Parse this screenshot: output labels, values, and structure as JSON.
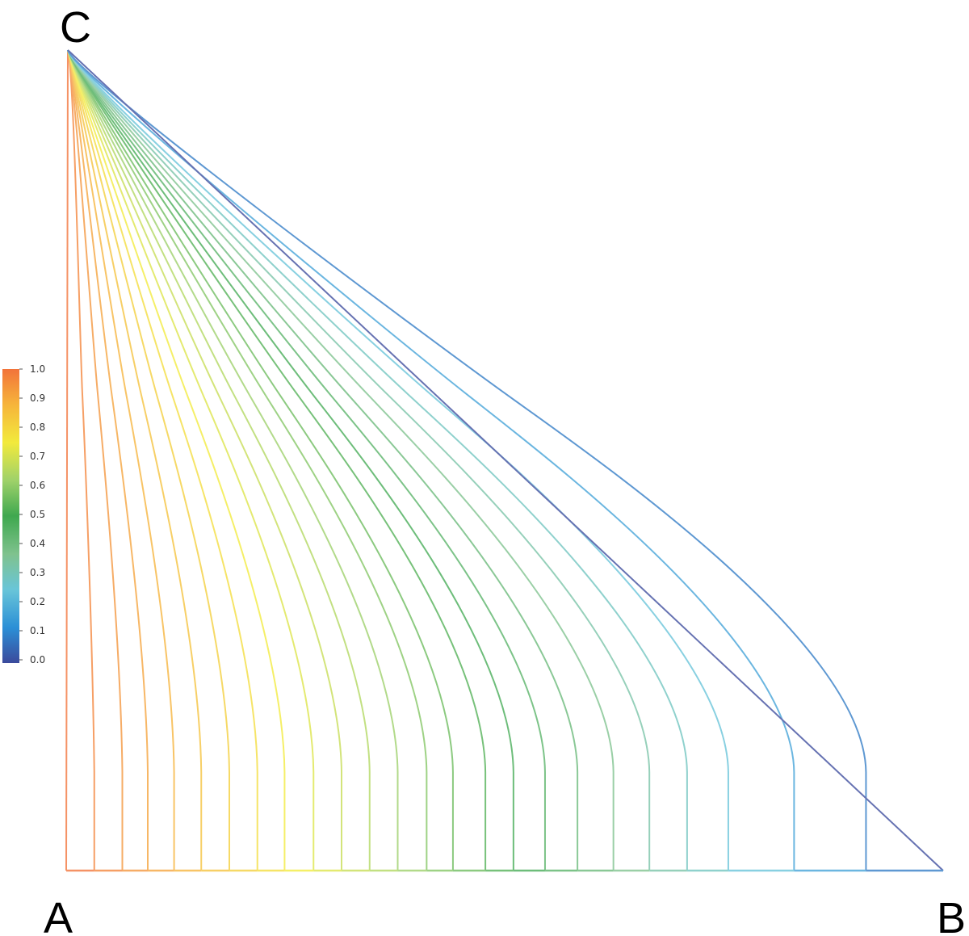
{
  "chart_data": {
    "type": "contour",
    "vertex_labels": {
      "a": "A",
      "b": "B",
      "c": "C"
    },
    "colorbar": {
      "ticks": [
        "1.0",
        "0.9",
        "0.8",
        "0.7",
        "0.6",
        "0.5",
        "0.4",
        "0.3",
        "0.2",
        "0.1",
        "0.0"
      ],
      "range": [
        0.0,
        1.0
      ],
      "colors": [
        "#3b4a9c",
        "#2b8fd6",
        "#69c5d8",
        "#7fc28e",
        "#3fa84f",
        "#9ed16a",
        "#f2ea3c",
        "#f6b43b",
        "#f2733a"
      ]
    },
    "contour_levels": [
      1.0,
      0.97,
      0.94,
      0.91,
      0.88,
      0.85,
      0.82,
      0.79,
      0.76,
      0.73,
      0.7,
      0.67,
      0.64,
      0.61,
      0.58,
      0.55,
      0.52,
      0.49,
      0.46,
      0.43,
      0.4,
      0.37,
      0.34,
      0.31,
      0.28,
      0.25,
      0.22,
      0.19,
      0.16,
      0.13,
      0.1,
      0.05,
      0.0
    ],
    "contour_base_positions": [
      0.0,
      0.032,
      0.064,
      0.093,
      0.123,
      0.154,
      0.186,
      0.218,
      0.249,
      0.282,
      0.314,
      0.346,
      0.378,
      0.411,
      0.441,
      0.478,
      0.51,
      0.546,
      0.583,
      0.624,
      0.665,
      0.708,
      0.755,
      0.83,
      0.912,
      1.0
    ]
  }
}
